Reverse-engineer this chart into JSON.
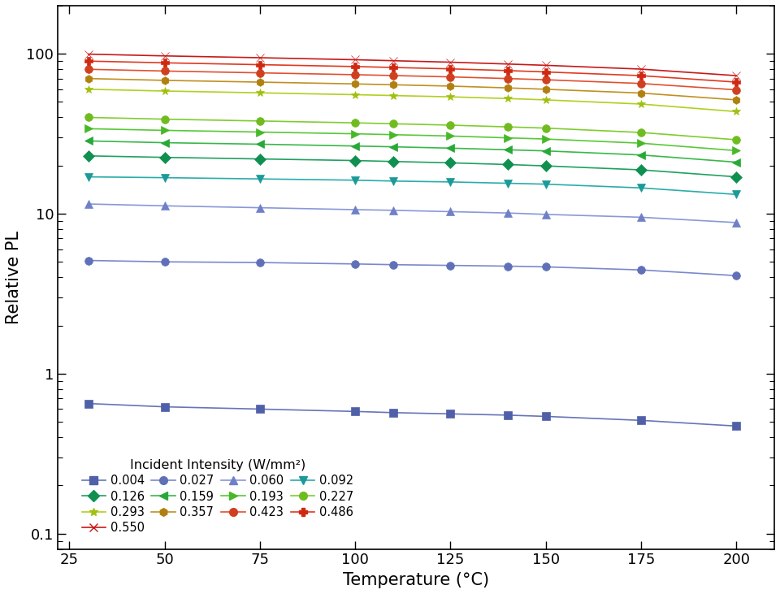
{
  "temperatures": [
    30,
    50,
    75,
    100,
    110,
    125,
    140,
    150,
    175,
    200
  ],
  "series": [
    {
      "label": "0.004",
      "color": "#6674b8",
      "marker": "s",
      "markercolor": "#5060a8",
      "values": [
        0.65,
        0.62,
        0.6,
        0.58,
        0.57,
        0.56,
        0.55,
        0.54,
        0.51,
        0.47
      ]
    },
    {
      "label": "0.027",
      "color": "#7a88cc",
      "marker": "o",
      "markercolor": "#6070b8",
      "values": [
        5.1,
        5.0,
        4.95,
        4.85,
        4.8,
        4.75,
        4.7,
        4.65,
        4.45,
        4.1
      ]
    },
    {
      "label": "0.060",
      "color": "#8898d8",
      "marker": "^",
      "markercolor": "#7080c8",
      "values": [
        11.5,
        11.2,
        10.9,
        10.6,
        10.5,
        10.3,
        10.1,
        9.9,
        9.5,
        8.8
      ]
    },
    {
      "label": "0.092",
      "color": "#2aacaa",
      "marker": "v",
      "markercolor": "#1a9a98",
      "values": [
        17.0,
        16.8,
        16.5,
        16.2,
        16.0,
        15.8,
        15.5,
        15.3,
        14.5,
        13.2
      ]
    },
    {
      "label": "0.126",
      "color": "#20a060",
      "marker": "D",
      "markercolor": "#109050",
      "values": [
        23.0,
        22.5,
        22.0,
        21.5,
        21.2,
        20.8,
        20.3,
        19.9,
        18.8,
        17.0
      ]
    },
    {
      "label": "0.159",
      "color": "#38b848",
      "marker": "<",
      "markercolor": "#28a838",
      "values": [
        28.5,
        27.8,
        27.2,
        26.5,
        26.2,
        25.7,
        25.1,
        24.7,
        23.3,
        21.0
      ]
    },
    {
      "label": "0.193",
      "color": "#58c838",
      "marker": ">",
      "markercolor": "#48b828",
      "values": [
        34.0,
        33.2,
        32.4,
        31.6,
        31.2,
        30.6,
        29.8,
        29.3,
        27.6,
        24.8
      ]
    },
    {
      "label": "0.227",
      "color": "#80cc30",
      "marker": "o",
      "markercolor": "#70bc20",
      "values": [
        40.0,
        39.0,
        38.0,
        37.0,
        36.5,
        35.8,
        34.9,
        34.3,
        32.2,
        29.0
      ]
    },
    {
      "label": "0.293",
      "color": "#b0d020",
      "marker": "*",
      "markercolor": "#a0c010",
      "values": [
        60.0,
        58.5,
        57.0,
        55.5,
        54.8,
        53.8,
        52.5,
        51.5,
        48.5,
        43.5
      ]
    },
    {
      "label": "0.357",
      "color": "#c09020",
      "marker": "h",
      "markercolor": "#b08010",
      "values": [
        70.0,
        68.2,
        66.5,
        64.8,
        64.0,
        62.8,
        61.2,
        60.0,
        56.8,
        51.5
      ]
    },
    {
      "label": "0.423",
      "color": "#e05030",
      "marker": "o",
      "markercolor": "#d04020",
      "values": [
        80.0,
        78.0,
        76.0,
        74.0,
        73.1,
        71.7,
        70.0,
        68.8,
        65.2,
        59.5
      ]
    },
    {
      "label": "0.486",
      "color": "#e03820",
      "marker": "P",
      "markercolor": "#d02810",
      "values": [
        90.0,
        87.8,
        85.5,
        83.2,
        82.1,
        80.5,
        78.5,
        77.0,
        73.0,
        66.5
      ]
    },
    {
      "label": "0.550",
      "color": "#c81818",
      "marker": "x",
      "markercolor": "#c81818",
      "values": [
        99.5,
        97.0,
        94.5,
        91.8,
        90.5,
        88.6,
        86.3,
        84.7,
        80.2,
        73.0
      ]
    }
  ],
  "xlabel": "Temperature (°C)",
  "ylabel": "Relative PL",
  "legend_title": "Incident Intensity (W/mm²)",
  "xlim": [
    22,
    210
  ],
  "ylim": [
    0.08,
    200
  ],
  "xticks": [
    25,
    50,
    75,
    100,
    125,
    150,
    175,
    200
  ],
  "yticks_major": [
    0.1,
    1,
    10,
    100
  ],
  "background_color": "#ffffff"
}
